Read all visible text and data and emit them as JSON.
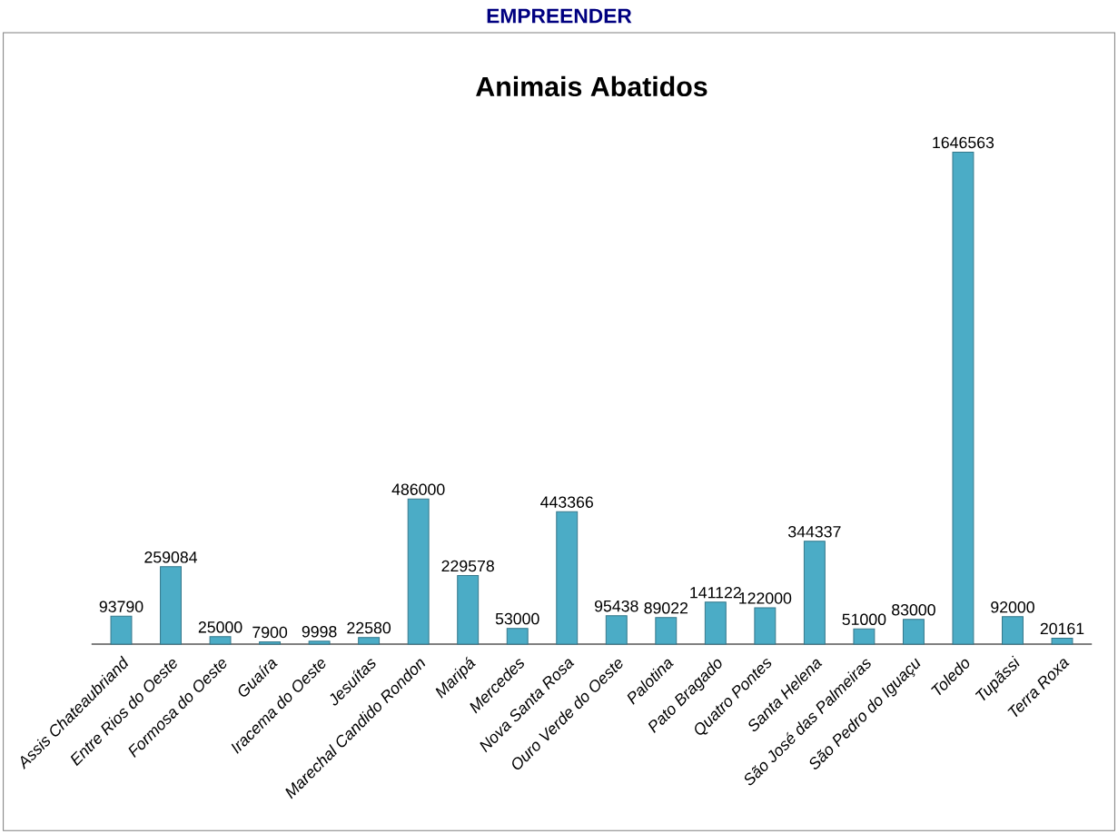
{
  "chart_data": {
    "type": "bar",
    "title": "Animais Abatidos",
    "annotations": [
      "EMPREENDER"
    ],
    "categories": [
      "Assis Chateaubriand",
      "Entre Rios do Oeste",
      "Formosa do Oeste",
      "Guaíra",
      "Iracema do Oeste",
      "Jesuítas",
      "Marechal Candido Rondon",
      "Maripá",
      "Mercedes",
      "Nova Santa Rosa",
      "Ouro Verde do Oeste",
      "Palotina",
      "Pato Bragado",
      "Quatro Pontes",
      "Santa Helena",
      "São José das Palmeiras",
      "São Pedro do Iguaçu",
      "Toledo",
      "Tupãssi",
      "Terra Roxa"
    ],
    "values": [
      93790,
      259084,
      25000,
      7900,
      9998,
      22580,
      486000,
      229578,
      53000,
      443366,
      95438,
      89022,
      141122,
      122000,
      344337,
      51000,
      83000,
      1646563,
      92000,
      20161
    ],
    "color": "#4bacc6",
    "data_labels": true
  }
}
